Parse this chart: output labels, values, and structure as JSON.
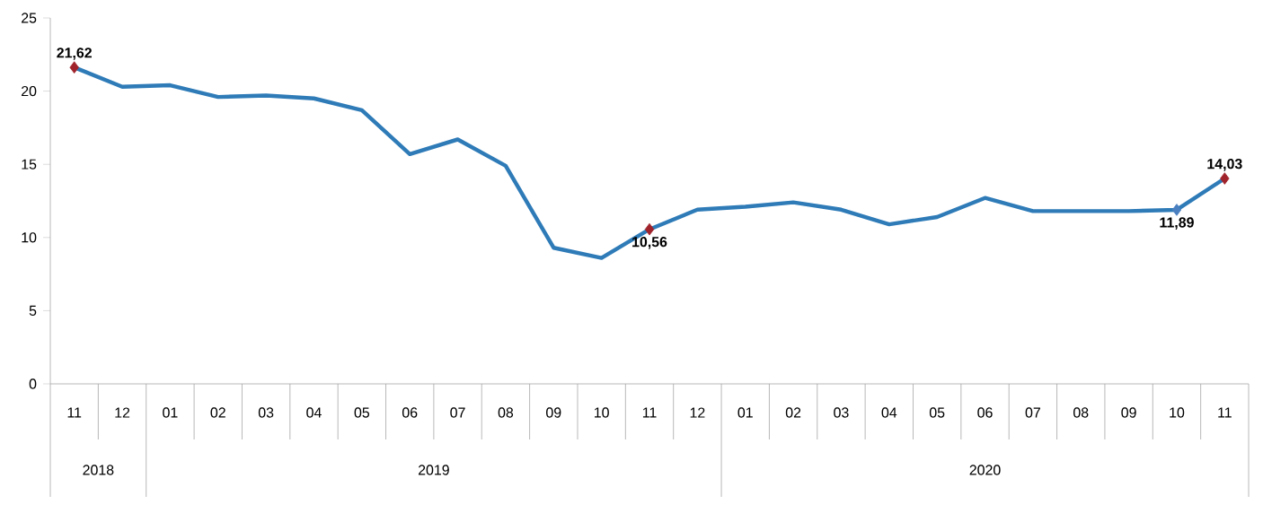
{
  "chart_data": {
    "type": "line",
    "x": [
      "2018-11",
      "2018-12",
      "2019-01",
      "2019-02",
      "2019-03",
      "2019-04",
      "2019-05",
      "2019-06",
      "2019-07",
      "2019-08",
      "2019-09",
      "2019-10",
      "2019-11",
      "2019-12",
      "2020-01",
      "2020-02",
      "2020-03",
      "2020-04",
      "2020-05",
      "2020-06",
      "2020-07",
      "2020-08",
      "2020-09",
      "2020-10",
      "2020-11"
    ],
    "xticks": [
      {
        "value": "2018-11",
        "label": "11"
      },
      {
        "value": "2018-12",
        "label": "12"
      },
      {
        "value": "2019-01",
        "label": "01"
      },
      {
        "value": "2019-02",
        "label": "02"
      },
      {
        "value": "2019-03",
        "label": "03"
      },
      {
        "value": "2019-04",
        "label": "04"
      },
      {
        "value": "2019-05",
        "label": "05"
      },
      {
        "value": "2019-06",
        "label": "06"
      },
      {
        "value": "2019-07",
        "label": "07"
      },
      {
        "value": "2019-08",
        "label": "08"
      },
      {
        "value": "2019-09",
        "label": "09"
      },
      {
        "value": "2019-10",
        "label": "10"
      },
      {
        "value": "2019-11",
        "label": "11"
      },
      {
        "value": "2019-12",
        "label": "12"
      },
      {
        "value": "2020-01",
        "label": "01"
      },
      {
        "value": "2020-02",
        "label": "02"
      },
      {
        "value": "2020-03",
        "label": "03"
      },
      {
        "value": "2020-04",
        "label": "04"
      },
      {
        "value": "2020-05",
        "label": "05"
      },
      {
        "value": "2020-06",
        "label": "06"
      },
      {
        "value": "2020-07",
        "label": "07"
      },
      {
        "value": "2020-08",
        "label": "08"
      },
      {
        "value": "2020-09",
        "label": "09"
      },
      {
        "value": "2020-10",
        "label": "10"
      },
      {
        "value": "2020-11",
        "label": "11"
      }
    ],
    "annotations": [
      "2018",
      "2019",
      "2020"
    ],
    "series": [
      {
        "color": "#2e7bb8",
        "values": [
          21.62,
          20.3,
          20.4,
          19.6,
          19.7,
          19.5,
          18.7,
          15.7,
          16.7,
          14.9,
          9.3,
          8.6,
          10.56,
          11.9,
          12.1,
          12.4,
          11.9,
          10.9,
          11.4,
          12.7,
          11.8,
          11.8,
          11.8,
          11.89,
          14.03
        ],
        "value_labels": [
          "21,62",
          null,
          null,
          null,
          null,
          null,
          null,
          null,
          null,
          null,
          null,
          null,
          "10,56",
          null,
          null,
          null,
          null,
          null,
          null,
          null,
          null,
          null,
          null,
          "11,89",
          "14,03"
        ],
        "colors": [
          "#a0232b",
          null,
          null,
          null,
          null,
          null,
          null,
          null,
          null,
          null,
          null,
          null,
          "#a0232b",
          null,
          null,
          null,
          null,
          null,
          null,
          null,
          null,
          null,
          null,
          "#4a7fc0",
          "#a0232b"
        ]
      }
    ],
    "xlim": [
      "2018-10-16",
      "2020-11-16"
    ],
    "ylim": [
      0,
      25
    ],
    "yticks": [
      0,
      5,
      10,
      15,
      20,
      25
    ],
    "line_style": "solid"
  }
}
